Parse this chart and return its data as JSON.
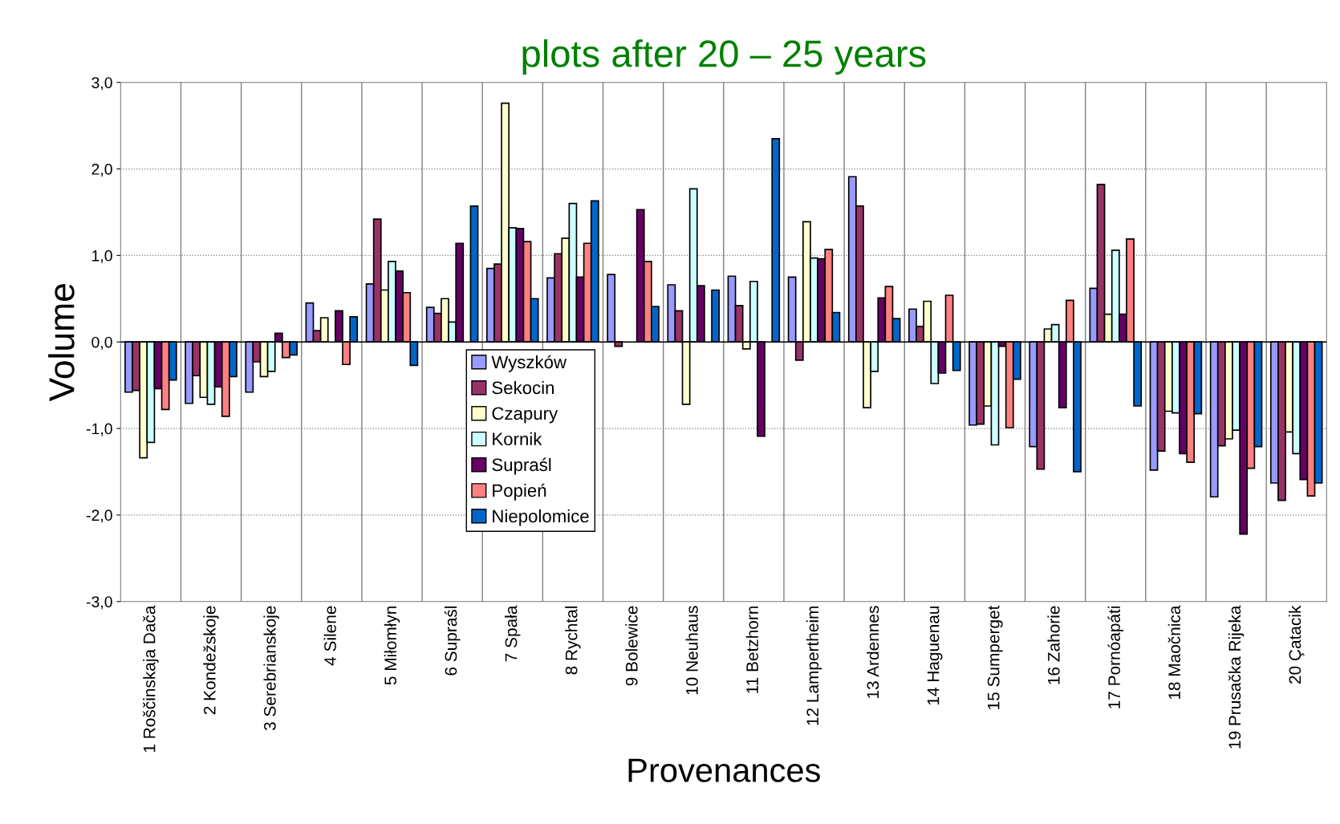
{
  "chart_data": {
    "type": "bar",
    "title": "plots after 20 – 25 years",
    "xlabel": "Provenances",
    "ylabel": "Volume",
    "categories": [
      "1 Roščinskaja Dača",
      "2 Kondežskoje",
      "3 Serebrianskoje",
      "4 Silene",
      "5 Miłomłyn",
      "6 Supraśl",
      "7 Spała",
      "8 Rychtal",
      "9 Bolewice",
      "10 Neuhaus",
      "11 Betzhorn",
      "12 Lampertheim",
      "13 Ardennes",
      "14 Haguenau",
      "15 Sumperget",
      "16 Zahorie",
      "17 Pornóapáti",
      "18 Maočnica",
      "19 Prusačka Rijeka",
      "20 Çatacik"
    ],
    "series": [
      {
        "name": "Wyszków",
        "color": "#9999ff",
        "values": [
          -0.58,
          -0.71,
          -0.58,
          0.45,
          0.67,
          0.4,
          0.85,
          0.74,
          0.78,
          0.66,
          0.76,
          0.75,
          1.91,
          0.38,
          -0.96,
          -1.21,
          0.62,
          -1.48,
          -1.79,
          -1.63
        ]
      },
      {
        "name": "Sekocin",
        "color": "#993366",
        "values": [
          -0.56,
          -0.39,
          -0.23,
          0.13,
          1.42,
          0.33,
          0.9,
          1.02,
          -0.05,
          0.36,
          0.42,
          -0.21,
          1.57,
          0.18,
          -0.95,
          -1.47,
          1.82,
          -1.26,
          -1.2,
          -1.83
        ]
      },
      {
        "name": "Czapury",
        "color": "#ffffcc",
        "values": [
          -1.34,
          -0.64,
          -0.4,
          0.28,
          0.6,
          0.5,
          2.76,
          1.2,
          null,
          -0.72,
          -0.08,
          1.39,
          -0.76,
          0.47,
          -0.74,
          0.15,
          0.32,
          -0.8,
          -1.12,
          -1.04
        ]
      },
      {
        "name": "Kornik",
        "color": "#ccffff",
        "values": [
          -1.16,
          -0.72,
          -0.34,
          null,
          0.93,
          0.23,
          1.32,
          1.6,
          null,
          1.77,
          0.7,
          0.97,
          -0.34,
          -0.48,
          -1.19,
          0.2,
          1.06,
          -0.82,
          -1.02,
          -1.29
        ]
      },
      {
        "name": "Supraśl",
        "color": "#660066",
        "values": [
          -0.54,
          -0.52,
          0.1,
          0.36,
          0.82,
          1.14,
          1.31,
          0.75,
          1.53,
          0.65,
          -1.09,
          0.96,
          0.51,
          -0.36,
          -0.05,
          -0.76,
          0.32,
          -1.29,
          -2.22,
          -1.59
        ]
      },
      {
        "name": "Popień",
        "color": "#ff8080",
        "values": [
          -0.78,
          -0.86,
          -0.18,
          -0.26,
          0.57,
          null,
          1.16,
          1.14,
          0.93,
          null,
          null,
          1.07,
          0.64,
          0.54,
          -0.99,
          0.48,
          1.19,
          -1.39,
          -1.46,
          -1.78
        ]
      },
      {
        "name": "Niepolomice",
        "color": "#0066cc",
        "values": [
          -0.44,
          -0.4,
          -0.15,
          0.29,
          -0.27,
          1.57,
          0.5,
          1.63,
          0.41,
          0.6,
          2.35,
          0.34,
          0.27,
          -0.33,
          -0.43,
          -1.5,
          -0.74,
          -0.83,
          -1.21,
          -1.63
        ]
      }
    ],
    "ylim": [
      -3.0,
      3.0
    ],
    "yticks": [
      {
        "value": -3.0,
        "label": "-3,0"
      },
      {
        "value": -2.0,
        "label": "-2,0"
      },
      {
        "value": -1.0,
        "label": "-1,0"
      },
      {
        "value": 0.0,
        "label": "0,0"
      },
      {
        "value": 1.0,
        "label": "1,0"
      },
      {
        "value": 2.0,
        "label": "2,0"
      },
      {
        "value": 3.0,
        "label": "3,0"
      }
    ],
    "grid": true,
    "legend": "bottom left"
  }
}
